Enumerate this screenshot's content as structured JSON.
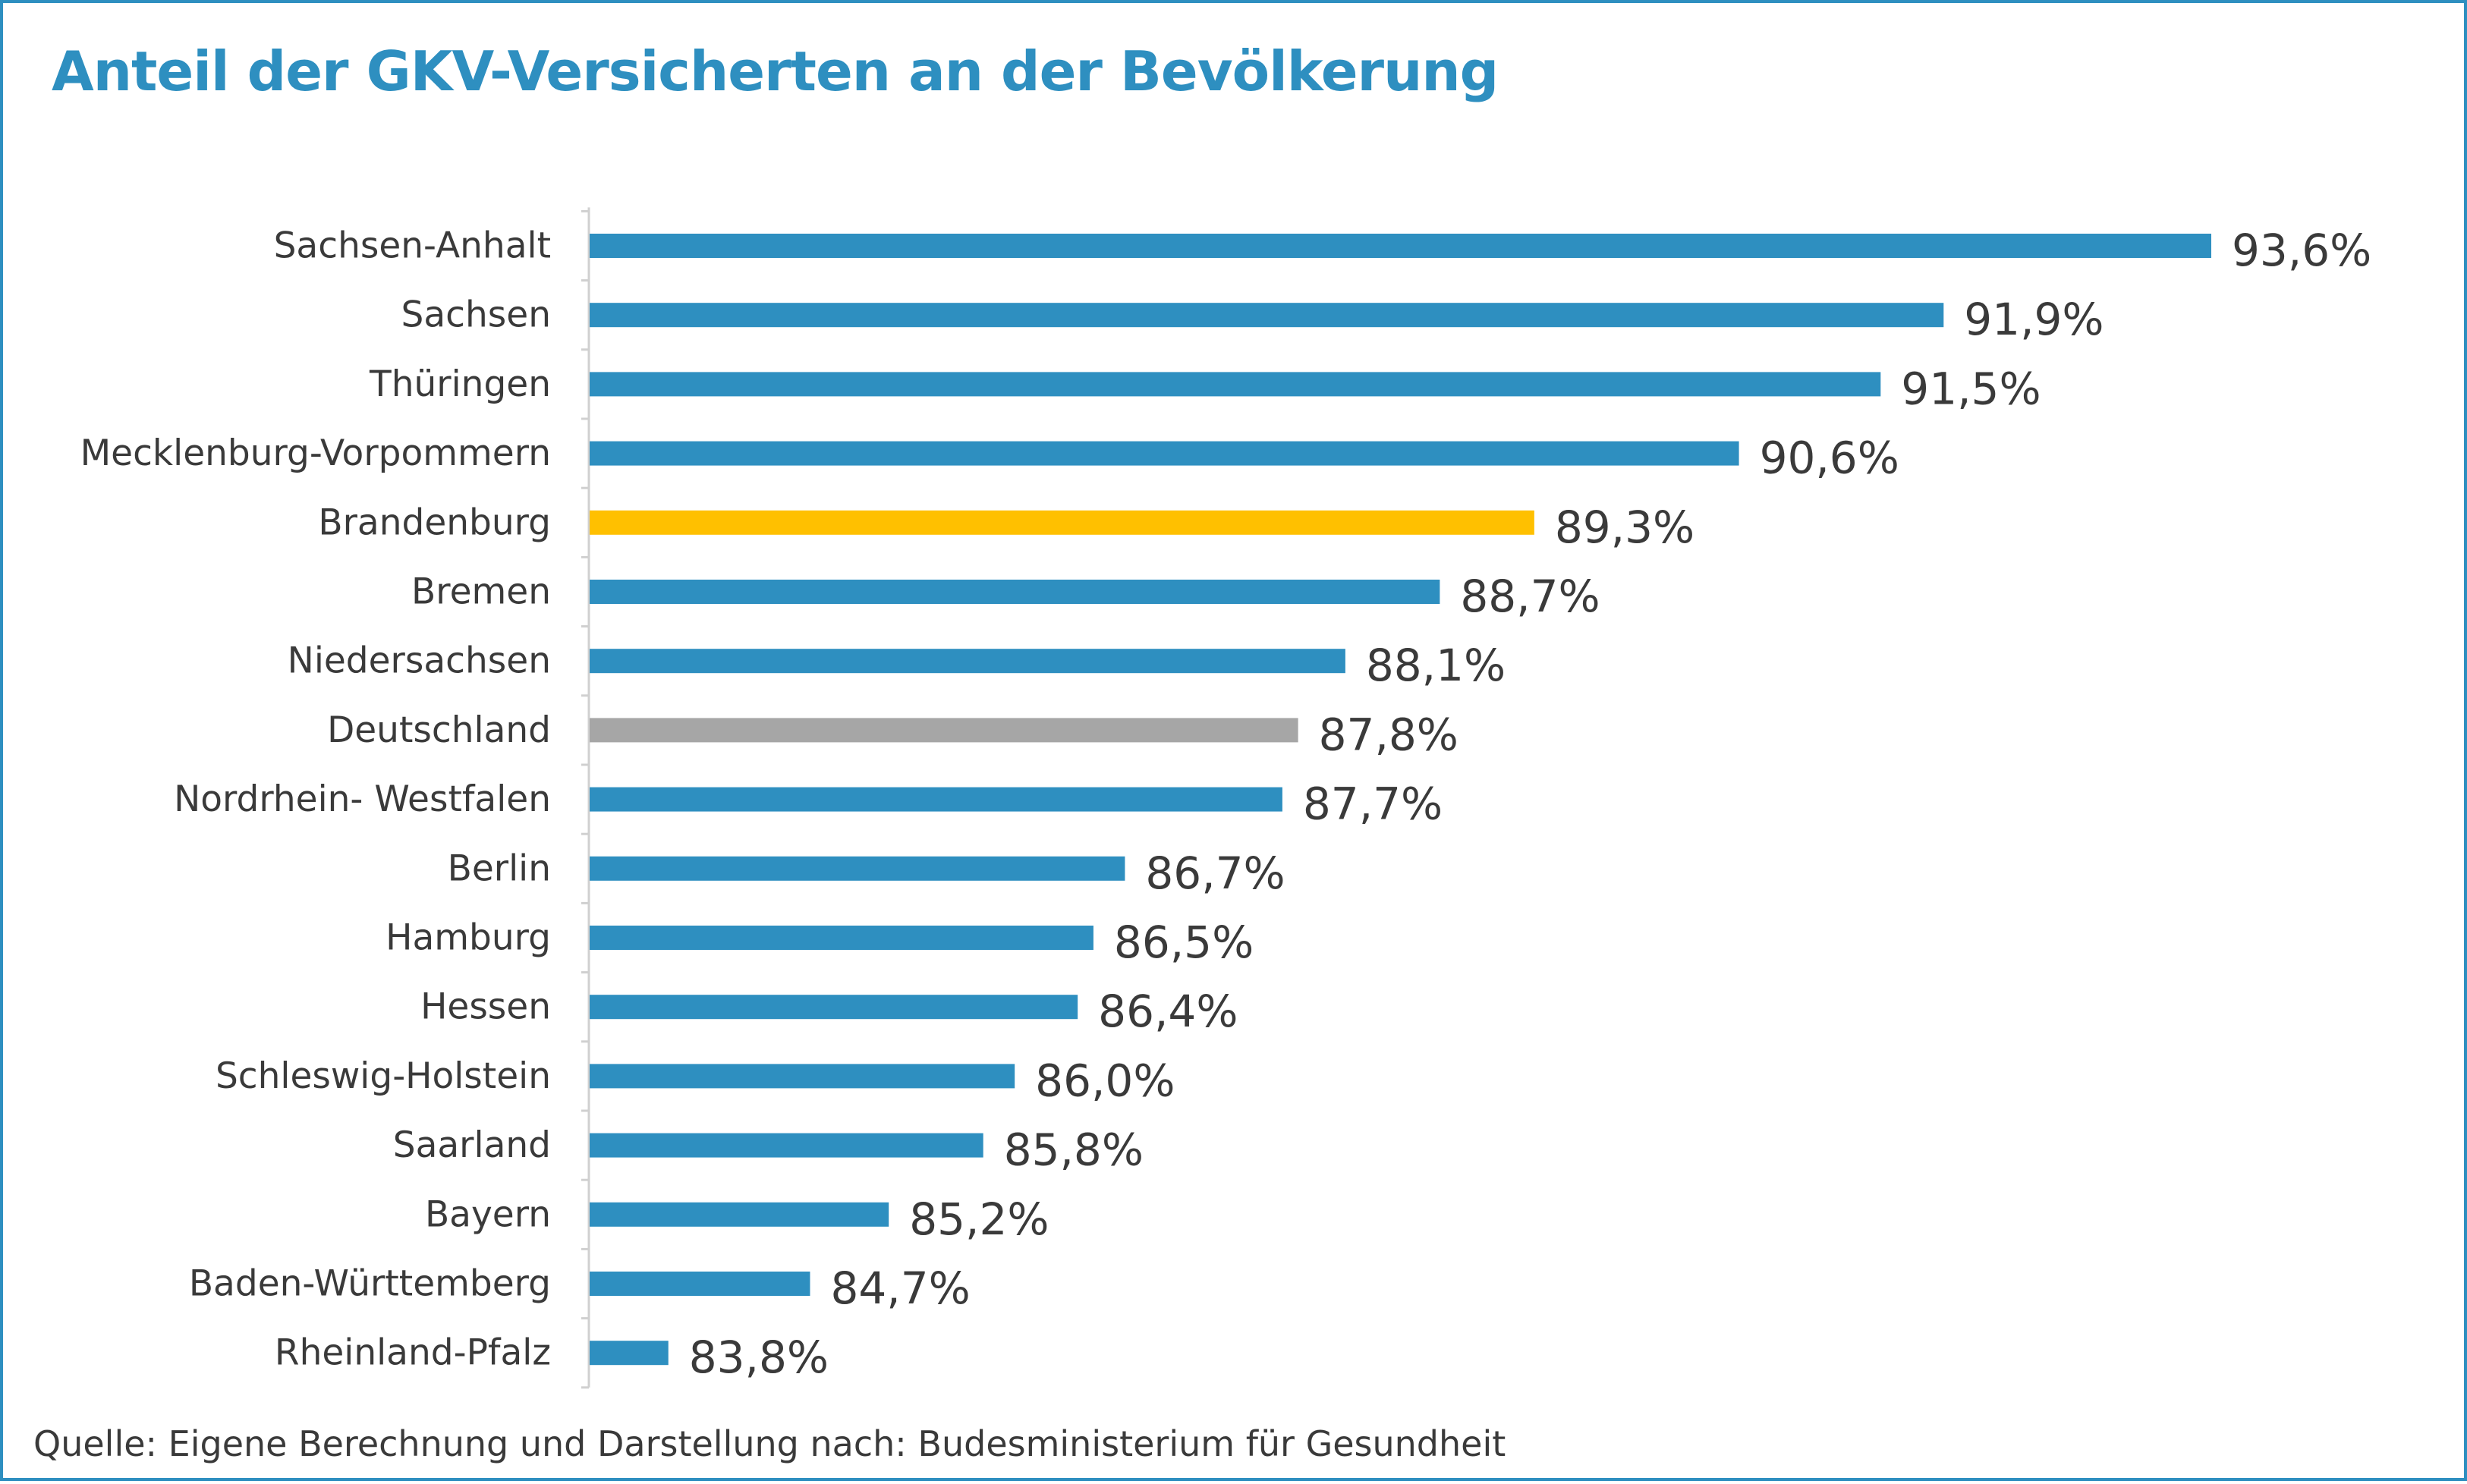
{
  "title": "Anteil der GKV-Versicherten an der Bevölkerung",
  "source": "Quelle: Eigene Berechnung und Darstellung nach: Budesministerium für Gesundheit",
  "colors": {
    "default_bar": "#2e8fc0",
    "highlight_bar": "#ffc000",
    "reference_bar": "#a6a6a6",
    "title": "#2e8fc0",
    "frame": "#2e8fc0",
    "text": "#3a3a3a",
    "axis": "#d0d0d0"
  },
  "chart_data": {
    "type": "bar",
    "orientation": "horizontal",
    "title": "Anteil der GKV-Versicherten an der Bevölkerung",
    "xlabel": "",
    "ylabel": "",
    "xlim": [
      83.3,
      93.6
    ],
    "grid": false,
    "legend": "none",
    "categories": [
      "Sachsen-Anhalt",
      "Sachsen",
      "Thüringen",
      "Mecklenburg-Vorpommern",
      "Brandenburg",
      "Bremen",
      "Niedersachsen",
      "Deutschland",
      "Nordrhein- Westfalen",
      "Berlin",
      "Hamburg",
      "Hessen",
      "Schleswig-Holstein",
      "Saarland",
      "Bayern",
      "Baden-Württemberg",
      "Rheinland-Pfalz"
    ],
    "values": [
      93.6,
      91.9,
      91.5,
      90.6,
      89.3,
      88.7,
      88.1,
      87.8,
      87.7,
      86.7,
      86.5,
      86.4,
      86.0,
      85.8,
      85.2,
      84.7,
      83.8
    ],
    "value_labels": [
      "93,6%",
      "91,9%",
      "91,5%",
      "90,6%",
      "89,3%",
      "88,7%",
      "88,1%",
      "87,8%",
      "87,7%",
      "86,7%",
      "86,5%",
      "86,4%",
      "86,0%",
      "85,8%",
      "85,2%",
      "84,7%",
      "83,8%"
    ],
    "bar_colors": [
      "#2e8fc0",
      "#2e8fc0",
      "#2e8fc0",
      "#2e8fc0",
      "#ffc000",
      "#2e8fc0",
      "#2e8fc0",
      "#a6a6a6",
      "#2e8fc0",
      "#2e8fc0",
      "#2e8fc0",
      "#2e8fc0",
      "#2e8fc0",
      "#2e8fc0",
      "#2e8fc0",
      "#2e8fc0",
      "#2e8fc0"
    ]
  }
}
